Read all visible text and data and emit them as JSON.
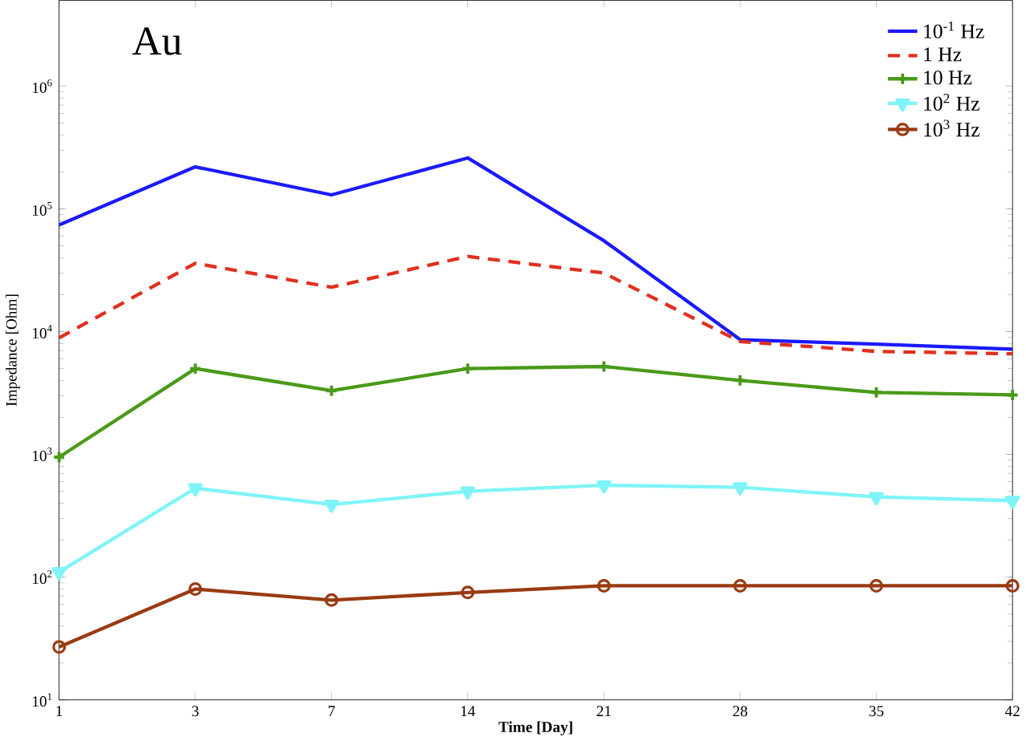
{
  "chart_data": {
    "type": "line",
    "annotations": [
      "Au"
    ],
    "xlabel": "Time [Day]",
    "ylabel": "Impedance [Ohm]",
    "categories": [
      "1",
      "3",
      "7",
      "14",
      "21",
      "28",
      "35",
      "42"
    ],
    "log": "y",
    "ylim": [
      10,
      5000000
    ],
    "yticks": [
      {
        "value": 10,
        "label": "10$^{1}$"
      },
      {
        "value": 100,
        "label": "10$^{2}$"
      },
      {
        "value": 1000,
        "label": "10$^{3}$"
      },
      {
        "value": 10000,
        "label": "10$^{4}$"
      },
      {
        "value": 100000,
        "label": "10$^{5}$"
      },
      {
        "value": 1000000,
        "label": "10$^{6}$"
      }
    ],
    "legend": "top right",
    "grid": false,
    "series": [
      {
        "name": "10$^{-1}$ Hz",
        "color": "#1a1aff",
        "marker": "none",
        "line_style": "solid",
        "values": [
          74000,
          220000,
          130000,
          260000,
          55000,
          8600,
          7900,
          7200
        ]
      },
      {
        "name": "1    Hz",
        "color": "#e0301e",
        "marker": "none",
        "line_style": "dashed",
        "values": [
          8900,
          36000,
          23000,
          41000,
          30000,
          8300,
          6900,
          6600
        ]
      },
      {
        "name": "10   Hz",
        "color": "#4a9a1a",
        "marker": "cross",
        "line_style": "solid",
        "values": [
          950,
          5000,
          3300,
          5000,
          5200,
          4000,
          3200,
          3050
        ]
      },
      {
        "name": "10$^{2}$ Hz",
        "color": "#7ff4f8",
        "marker": "triangle",
        "line_style": "solid",
        "values": [
          110,
          530,
          390,
          500,
          560,
          540,
          450,
          420
        ]
      },
      {
        "name": "10$^{3}$ Hz",
        "color": "#9a3a12",
        "marker": "circle",
        "line_style": "solid",
        "values": [
          27,
          80,
          65,
          75,
          85,
          85,
          85,
          85
        ]
      }
    ]
  }
}
